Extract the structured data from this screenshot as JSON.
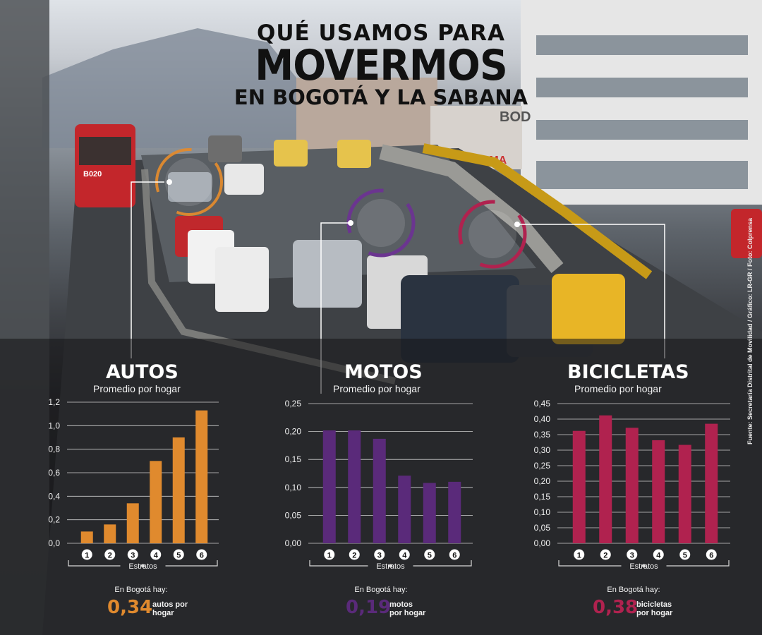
{
  "title": {
    "line1": "QUÉ USAMOS PARA",
    "line2": "MOVERMOS",
    "line3": "EN BOGOTÁ Y LA SABANA"
  },
  "sign_text": "ALMA",
  "building_text": "BOD",
  "bus_label": "B020",
  "credit": "Fuente: Secretaría Distrital de Movilidad / Gráfico: LR-GR / Foto: Colprensa",
  "colors": {
    "autos": "#e08a2e",
    "motos": "#5a2a7a",
    "bicicletas": "#b0224f"
  },
  "panels": [
    {
      "title": "AUTOS",
      "subtitle": "Promedio por hogar",
      "xlabel": "Estratos",
      "note_label": "En Bogotá hay:",
      "big_value": "0,34",
      "unit_line1": "autos por",
      "unit_line2": "hogar",
      "color_key": "autos"
    },
    {
      "title": "MOTOS",
      "subtitle": "Promedio por hogar",
      "xlabel": "Estratos",
      "note_label": "En Bogotá hay:",
      "big_value": "0,19",
      "unit_line1": "motos",
      "unit_line2": "por hogar",
      "color_key": "motos"
    },
    {
      "title": "BICICLETAS",
      "subtitle": "Promedio por hogar",
      "xlabel": "Estratos",
      "note_label": "En Bogotá hay:",
      "big_value": "0,38",
      "unit_line1": "bicicletas",
      "unit_line2": "por hogar",
      "color_key": "bicicletas"
    }
  ],
  "chart_data": [
    {
      "type": "bar",
      "title": "AUTOS",
      "subtitle": "Promedio por hogar",
      "xlabel": "Estratos",
      "categories": [
        "1",
        "2",
        "3",
        "4",
        "5",
        "6"
      ],
      "values": [
        0.1,
        0.16,
        0.34,
        0.7,
        0.9,
        1.13
      ],
      "ylim": [
        0,
        1.2
      ],
      "yticks": [
        "0,0",
        "0,2",
        "0,4",
        "0,6",
        "0,8",
        "1,0",
        "1,2"
      ],
      "color": "#e08a2e",
      "grid": true
    },
    {
      "type": "bar",
      "title": "MOTOS",
      "subtitle": "Promedio por hogar",
      "xlabel": "Estratos",
      "categories": [
        "1",
        "2",
        "3",
        "4",
        "5",
        "6"
      ],
      "values": [
        0.202,
        0.202,
        0.187,
        0.121,
        0.108,
        0.11
      ],
      "ylim": [
        0,
        0.25
      ],
      "yticks": [
        "0,00",
        "0,05",
        "0,10",
        "0,15",
        "0,20",
        "0,25"
      ],
      "color": "#5a2a7a",
      "grid": true
    },
    {
      "type": "bar",
      "title": "BICICLETAS",
      "subtitle": "Promedio por hogar",
      "xlabel": "Estratos",
      "categories": [
        "1",
        "2",
        "3",
        "4",
        "5",
        "6"
      ],
      "values": [
        0.362,
        0.412,
        0.372,
        0.332,
        0.317,
        0.385
      ],
      "ylim": [
        0,
        0.45
      ],
      "yticks": [
        "0,00",
        "0,05",
        "0,10",
        "0,15",
        "0,20",
        "0,25",
        "0,30",
        "0,35",
        "0,40",
        "0,45"
      ],
      "color": "#b0224f",
      "grid": true
    }
  ]
}
